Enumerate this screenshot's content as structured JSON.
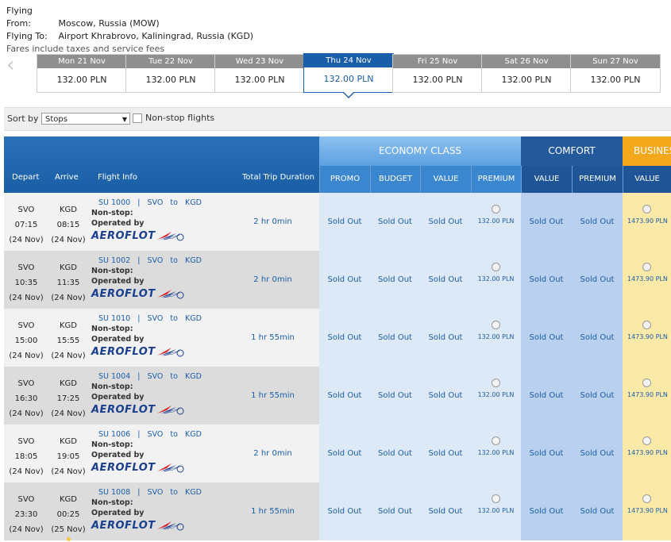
{
  "search": {
    "from_label": "Flying From:",
    "from_value": "Moscow, Russia (MOW)",
    "to_label": "Flying To:",
    "to_value": "Airport Khrabrovo, Kaliningrad, Russia (KGD)",
    "note": "Fares include taxes and service fees"
  },
  "dates": [
    {
      "day": "Mon 21 Nov",
      "price": "132.00 PLN"
    },
    {
      "day": "Tue 22 Nov",
      "price": "132.00 PLN"
    },
    {
      "day": "Wed 23 Nov",
      "price": "132.00 PLN"
    },
    {
      "day": "Thu 24 Nov",
      "price": "132.00 PLN",
      "selected": true
    },
    {
      "day": "Fri 25 Nov",
      "price": "132.00 PLN"
    },
    {
      "day": "Sat 26 Nov",
      "price": "132.00 PLN"
    },
    {
      "day": "Sun 27 Nov",
      "price": "132.00 PLN"
    }
  ],
  "sort": {
    "label": "Sort by",
    "value": "Stops",
    "nonstop_label": "Non-stop flights"
  },
  "header": {
    "depart": "Depart",
    "arrive": "Arrive",
    "flight_info": "Flight Info",
    "duration": "Total Trip Duration",
    "economy": "ECONOMY CLASS",
    "comfort": "COMFORT",
    "business": "BUSINESS",
    "eco_cols": [
      "PROMO",
      "BUDGET",
      "VALUE",
      "PREMIUM"
    ],
    "comfort_cols": [
      "VALUE",
      "PREMIUM"
    ],
    "business_cols": [
      "VALUE"
    ]
  },
  "labels": {
    "to": "to",
    "nonstop": "Non-stop:",
    "operated": "Operated by",
    "airline": "AEROFLOT",
    "sold_out": "Sold Out",
    "pipe": "|"
  },
  "flights": [
    {
      "dep_code": "SVO",
      "dep_time": "07:15",
      "dep_date": "(24 Nov)",
      "arr_code": "KGD",
      "arr_time": "08:15",
      "arr_date": "(24 Nov)",
      "flight": "SU 1000",
      "from": "SVO",
      "to": "KGD",
      "duration": "2 hr 0min",
      "premium_price": "132.00 PLN",
      "business_price": "1473.90 PLN"
    },
    {
      "dep_code": "SVO",
      "dep_time": "10:35",
      "dep_date": "(24 Nov)",
      "arr_code": "KGD",
      "arr_time": "11:35",
      "arr_date": "(24 Nov)",
      "flight": "SU 1002",
      "from": "SVO",
      "to": "KGD",
      "duration": "2 hr 0min",
      "premium_price": "132.00 PLN",
      "business_price": "1473.90 PLN"
    },
    {
      "dep_code": "SVO",
      "dep_time": "15:00",
      "dep_date": "(24 Nov)",
      "arr_code": "KGD",
      "arr_time": "15:55",
      "arr_date": "(24 Nov)",
      "flight": "SU 1010",
      "from": "SVO",
      "to": "KGD",
      "duration": "1 hr 55min",
      "premium_price": "132.00 PLN",
      "business_price": "1473.90 PLN"
    },
    {
      "dep_code": "SVO",
      "dep_time": "16:30",
      "dep_date": "(24 Nov)",
      "arr_code": "KGD",
      "arr_time": "17:25",
      "arr_date": "(24 Nov)",
      "flight": "SU 1004",
      "from": "SVO",
      "to": "KGD",
      "duration": "1 hr 55min",
      "premium_price": "132.00 PLN",
      "business_price": "1473.90 PLN"
    },
    {
      "dep_code": "SVO",
      "dep_time": "18:05",
      "dep_date": "(24 Nov)",
      "arr_code": "KGD",
      "arr_time": "19:05",
      "arr_date": "(24 Nov)",
      "flight": "SU 1006",
      "from": "SVO",
      "to": "KGD",
      "duration": "2 hr 0min",
      "premium_price": "132.00 PLN",
      "business_price": "1473.90 PLN"
    },
    {
      "dep_code": "SVO",
      "dep_time": "23:30",
      "dep_date": "(24 Nov)",
      "arr_code": "KGD",
      "arr_time": "00:25",
      "arr_date": "(25 Nov)",
      "flight": "SU 1008",
      "from": "SVO",
      "to": "KGD",
      "duration": "1 hr 55min",
      "premium_price": "132.00 PLN",
      "business_price": "1473.90 PLN",
      "next_day_icon": "next-day-dot-icon"
    }
  ],
  "colors": {
    "header_blue": "#1a5fa6",
    "economy_header": "#6eaee8",
    "comfort_header": "#245a9c",
    "business_header": "#f3a71a",
    "economy_cell": "#dde9f7",
    "comfort_cell": "#b9d1ee",
    "business_cell": "#fbe9a8",
    "row_light": "#f2f2f2",
    "row_dark": "#dcdcdc"
  }
}
